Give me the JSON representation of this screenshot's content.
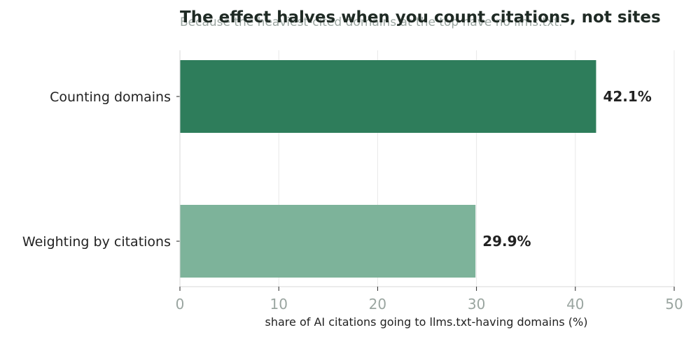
{
  "chart_data": {
    "type": "bar",
    "orientation": "horizontal",
    "title": "The effect halves when you count citations, not sites",
    "subtitle": "Because the heaviest-cited domains at the top have no llms.txt.",
    "xlabel": "share of AI citations going to llms.txt-having domains (%)",
    "ylabel": "",
    "xlim": [
      0,
      50
    ],
    "xticks": [
      0,
      10,
      20,
      30,
      40,
      50
    ],
    "grid": "vertical",
    "categories": [
      "Counting domains",
      "Weighting by citations"
    ],
    "values": [
      42.1,
      29.9
    ],
    "value_labels": [
      "42.1%",
      "29.9%"
    ],
    "colors": [
      "#2e7d5b",
      "#7db39a"
    ]
  },
  "colors": {
    "title": "#1f2a24",
    "subtitle": "#9aa5a0",
    "tick_label": "#9aa5a0",
    "text": "#222222",
    "grid": "#e8e8e8"
  }
}
